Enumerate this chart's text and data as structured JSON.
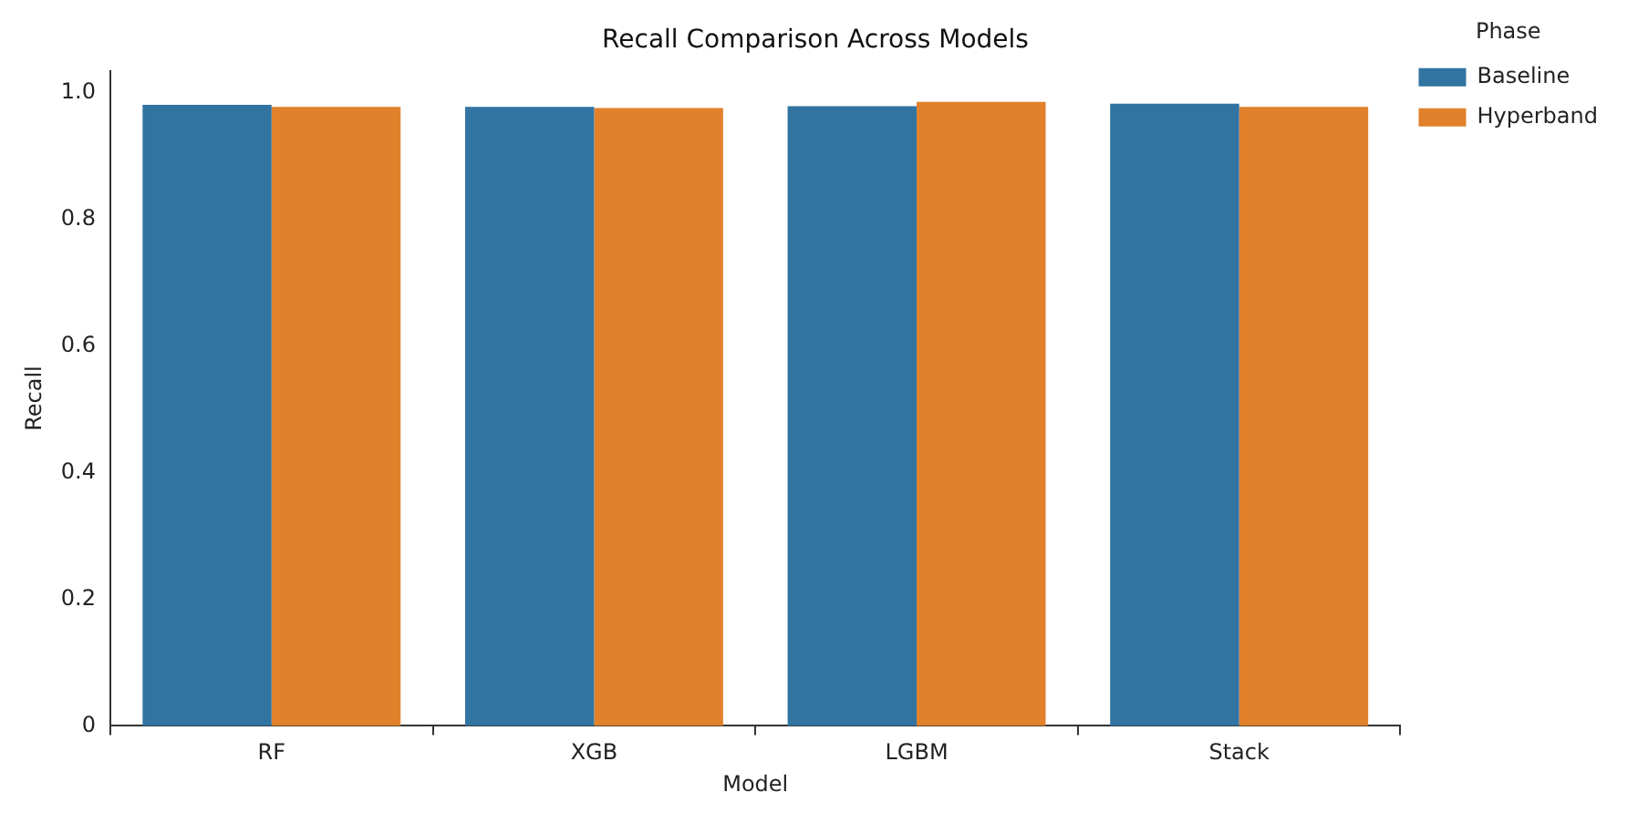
{
  "chart_data": {
    "type": "bar",
    "title": "Recall Comparison Across Models",
    "xlabel": "Model",
    "ylabel": "Recall",
    "legend_title": "Phase",
    "categories": [
      "RF",
      "XGB",
      "LGBM",
      "Stack"
    ],
    "series": [
      {
        "name": "Baseline",
        "color": "#3274a1",
        "values": [
          0.981,
          0.978,
          0.979,
          0.983
        ]
      },
      {
        "name": "Hyperband",
        "color": "#e1812c",
        "values": [
          0.978,
          0.976,
          0.986,
          0.978
        ]
      }
    ],
    "ylim": [
      0,
      1.035
    ],
    "yticks": [
      0,
      {
        "value": 0.2,
        "label": "0.2"
      },
      {
        "value": 0.4,
        "label": "0.4"
      },
      {
        "value": 0.6,
        "label": "0.6"
      },
      {
        "value": 0.8,
        "label": "0.8"
      },
      {
        "value": 1,
        "label": "1.0"
      }
    ],
    "grid": false,
    "legend": "top right"
  }
}
